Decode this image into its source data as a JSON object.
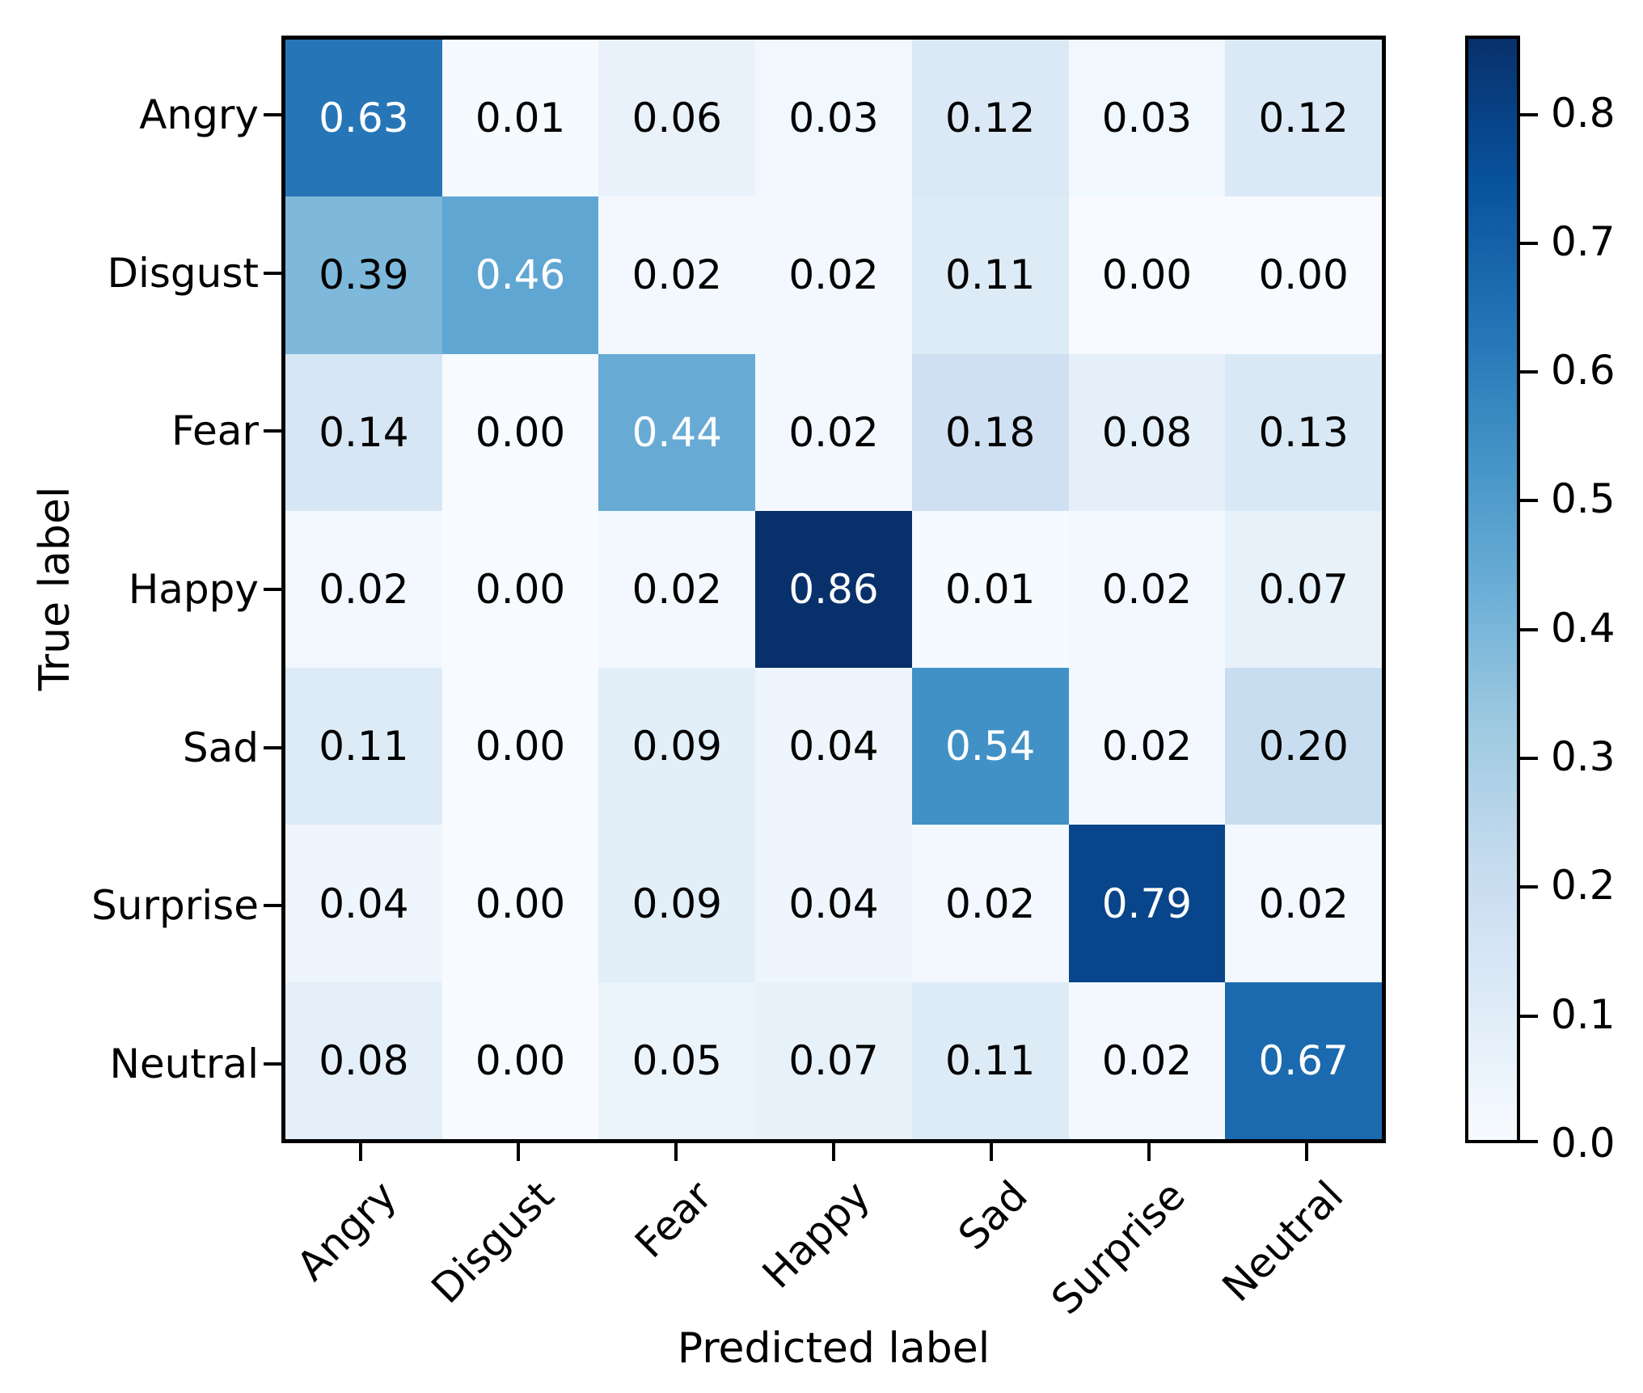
{
  "chart_data": {
    "type": "heatmap",
    "title": "",
    "xlabel": "Predicted label",
    "ylabel": "True label",
    "x_tick_labels": [
      "Angry",
      "Disgust",
      "Fear",
      "Happy",
      "Sad",
      "Surprise",
      "Neutral"
    ],
    "y_tick_labels": [
      "Angry",
      "Disgust",
      "Fear",
      "Happy",
      "Sad",
      "Surprise",
      "Neutral"
    ],
    "matrix": [
      [
        0.63,
        0.01,
        0.06,
        0.03,
        0.12,
        0.03,
        0.12
      ],
      [
        0.39,
        0.46,
        0.02,
        0.02,
        0.11,
        0.0,
        0.0
      ],
      [
        0.14,
        0.0,
        0.44,
        0.02,
        0.18,
        0.08,
        0.13
      ],
      [
        0.02,
        0.0,
        0.02,
        0.86,
        0.01,
        0.02,
        0.07
      ],
      [
        0.11,
        0.0,
        0.09,
        0.04,
        0.54,
        0.02,
        0.2
      ],
      [
        0.04,
        0.0,
        0.09,
        0.04,
        0.02,
        0.79,
        0.02
      ],
      [
        0.08,
        0.0,
        0.05,
        0.07,
        0.11,
        0.02,
        0.67
      ]
    ],
    "value_decimals": 2,
    "vmin": 0.0,
    "vmax": 0.86,
    "grid": false,
    "colorbar": {
      "position": "right",
      "ticks": [
        0.0,
        0.1,
        0.2,
        0.3,
        0.4,
        0.5,
        0.6,
        0.7,
        0.8
      ],
      "tick_decimals": 1
    },
    "colormap": {
      "name": "Blues",
      "anchors": [
        "#f7fbff",
        "#deebf7",
        "#c6dbef",
        "#9ecae1",
        "#6baed6",
        "#4292c6",
        "#2171b5",
        "#08519c",
        "#08306b"
      ]
    },
    "colors": {
      "cell_text_light": "#ffffff",
      "cell_text_dark": "#000000",
      "axis": "#000000",
      "background": "#ffffff"
    }
  }
}
